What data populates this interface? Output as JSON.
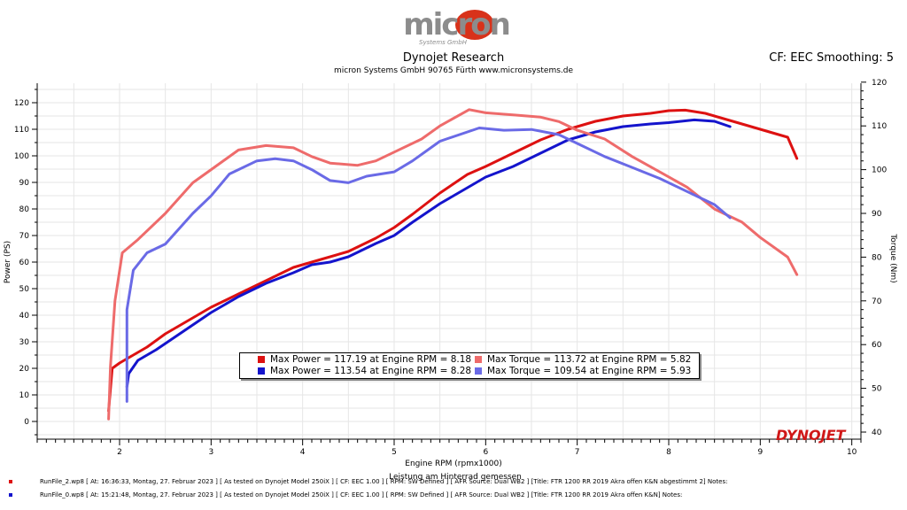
{
  "header": {
    "logo_text": "micron",
    "logo_sub": "Systems GmbH",
    "title": "Dynojet Research",
    "subtitle": "micron Systems GmbH  90765 Fürth www.micronsystems.de",
    "cf_label": "CF: EEC Smoothing: 5"
  },
  "brand": {
    "dynojet_logo": "DYNOJET",
    "colors": {
      "red": "#dd1111",
      "blue": "#1414cc",
      "light_red": "#ee6b6b",
      "light_blue": "#6a6ae6"
    }
  },
  "chart_data": {
    "type": "line",
    "xlabel": "Engine RPM (rpmx1000)",
    "xlabel_note": "Leistung am Hinterrad gemessen",
    "ylabel_left": "Power (PS)",
    "ylabel_right": "Torque (Nm)",
    "xlim": [
      1.1,
      10.1
    ],
    "ylim_left": [
      -5,
      128
    ],
    "ylim_right": [
      40,
      120
    ],
    "x_ticks": [
      "2",
      "3",
      "4",
      "5",
      "6",
      "7",
      "8",
      "9",
      "10"
    ],
    "y_left_ticks": [
      "0",
      "10",
      "20",
      "30",
      "40",
      "50",
      "60",
      "70",
      "80",
      "90",
      "100",
      "110",
      "120"
    ],
    "y_right_ticks": [
      "40",
      "50",
      "60",
      "70",
      "80",
      "90",
      "100",
      "110",
      "120"
    ],
    "grid": true,
    "series": [
      {
        "axis": "left",
        "color": "#dd1111",
        "points": [
          [
            1.88,
            4
          ],
          [
            1.92,
            20
          ],
          [
            2.0,
            22
          ],
          [
            2.1,
            24
          ],
          [
            2.3,
            28
          ],
          [
            2.5,
            33
          ],
          [
            2.8,
            39
          ],
          [
            3.0,
            43
          ],
          [
            3.3,
            48
          ],
          [
            3.6,
            53
          ],
          [
            3.9,
            58
          ],
          [
            4.2,
            61
          ],
          [
            4.5,
            64
          ],
          [
            4.8,
            69
          ],
          [
            5.0,
            73
          ],
          [
            5.2,
            78
          ],
          [
            5.5,
            86
          ],
          [
            5.8,
            93
          ],
          [
            6.0,
            96
          ],
          [
            6.3,
            101
          ],
          [
            6.6,
            106
          ],
          [
            6.9,
            110
          ],
          [
            7.2,
            113
          ],
          [
            7.5,
            115
          ],
          [
            7.8,
            116
          ],
          [
            8.0,
            117
          ],
          [
            8.18,
            117.19
          ],
          [
            8.4,
            116
          ],
          [
            8.7,
            113
          ],
          [
            9.0,
            110
          ],
          [
            9.3,
            107
          ],
          [
            9.4,
            99
          ]
        ]
      },
      {
        "axis": "left",
        "color": "#1414cc",
        "points": [
          [
            2.08,
            13
          ],
          [
            2.1,
            18
          ],
          [
            2.2,
            23
          ],
          [
            2.4,
            27
          ],
          [
            2.7,
            34
          ],
          [
            3.0,
            41
          ],
          [
            3.3,
            47
          ],
          [
            3.6,
            52
          ],
          [
            3.9,
            56
          ],
          [
            4.1,
            59
          ],
          [
            4.3,
            60
          ],
          [
            4.5,
            62
          ],
          [
            4.8,
            67
          ],
          [
            5.0,
            70
          ],
          [
            5.2,
            75
          ],
          [
            5.5,
            82
          ],
          [
            5.8,
            88
          ],
          [
            6.0,
            92
          ],
          [
            6.3,
            96
          ],
          [
            6.6,
            101
          ],
          [
            6.9,
            106
          ],
          [
            7.2,
            109
          ],
          [
            7.5,
            111
          ],
          [
            7.8,
            112
          ],
          [
            8.0,
            112.5
          ],
          [
            8.28,
            113.54
          ],
          [
            8.5,
            113
          ],
          [
            8.67,
            111
          ]
        ]
      },
      {
        "axis": "right",
        "color": "#ee6b6b",
        "points": [
          [
            1.88,
            43
          ],
          [
            1.9,
            55
          ],
          [
            1.95,
            70
          ],
          [
            2.03,
            81
          ],
          [
            2.2,
            84
          ],
          [
            2.5,
            90
          ],
          [
            2.8,
            97
          ],
          [
            3.0,
            100
          ],
          [
            3.3,
            104.5
          ],
          [
            3.6,
            105.5
          ],
          [
            3.9,
            105
          ],
          [
            4.1,
            103
          ],
          [
            4.3,
            101.5
          ],
          [
            4.6,
            101
          ],
          [
            4.8,
            102
          ],
          [
            5.0,
            104
          ],
          [
            5.3,
            107
          ],
          [
            5.5,
            110
          ],
          [
            5.82,
            113.72
          ],
          [
            6.0,
            113
          ],
          [
            6.3,
            112.5
          ],
          [
            6.6,
            112
          ],
          [
            6.8,
            111
          ],
          [
            7.0,
            109
          ],
          [
            7.3,
            107
          ],
          [
            7.6,
            103
          ],
          [
            7.9,
            99.5
          ],
          [
            8.2,
            96
          ],
          [
            8.5,
            91
          ],
          [
            8.8,
            88
          ],
          [
            9.0,
            84.5
          ],
          [
            9.3,
            80
          ],
          [
            9.4,
            76
          ]
        ]
      },
      {
        "axis": "right",
        "color": "#6a6ae6",
        "points": [
          [
            2.08,
            47
          ],
          [
            2.08,
            68
          ],
          [
            2.15,
            77
          ],
          [
            2.3,
            81
          ],
          [
            2.5,
            83
          ],
          [
            2.8,
            90
          ],
          [
            3.0,
            94
          ],
          [
            3.2,
            99
          ],
          [
            3.5,
            102
          ],
          [
            3.7,
            102.5
          ],
          [
            3.9,
            102
          ],
          [
            4.1,
            100
          ],
          [
            4.3,
            97.5
          ],
          [
            4.5,
            97
          ],
          [
            4.7,
            98.5
          ],
          [
            5.0,
            99.5
          ],
          [
            5.2,
            102
          ],
          [
            5.5,
            106.5
          ],
          [
            5.93,
            109.54
          ],
          [
            6.2,
            109
          ],
          [
            6.5,
            109.2
          ],
          [
            6.8,
            108
          ],
          [
            7.0,
            106
          ],
          [
            7.3,
            103
          ],
          [
            7.6,
            100.5
          ],
          [
            7.9,
            98
          ],
          [
            8.2,
            95
          ],
          [
            8.5,
            92
          ],
          [
            8.67,
            89
          ]
        ]
      }
    ],
    "legend": [
      {
        "color": "#dd1111",
        "label": "Max Power = 117.19 at Engine RPM = 8.18"
      },
      {
        "color": "#ee6b6b",
        "label": "Max Torque = 113.72 at Engine RPM = 5.82"
      },
      {
        "color": "#1414cc",
        "label": "Max Power = 113.54 at Engine RPM = 8.28"
      },
      {
        "color": "#6a6ae6",
        "label": "Max Torque = 109.54 at Engine RPM = 5.93"
      }
    ]
  },
  "footer": {
    "run0": "RunFile_2.wp8  [  At:  16:36:33, Montag, 27. Februar 2023 ]  [  As tested on Dynojet Model 250iX  ]  [  CF:  EEC 1.00  ]  [  RPM:  SW Defined  ]  [  AFR Source:  Dual  WB2  ]  [Title:  FTR  1200  RR  2019  Akra offen K&N abgestimmt 2]   Notes:",
    "run1": "RunFile_0.wp8  [  At:  15:21:48, Montag, 27. Februar 2023 ]  [  As tested on Dynojet Model 250iX  ]  [  CF:  EEC 1.00  ]  [  RPM:  SW Defined  ]  [  AFR Source:  Dual  WB2  ]  [Title:  FTR  1200  RR  2019  Akra offen K&N]   Notes:"
  }
}
